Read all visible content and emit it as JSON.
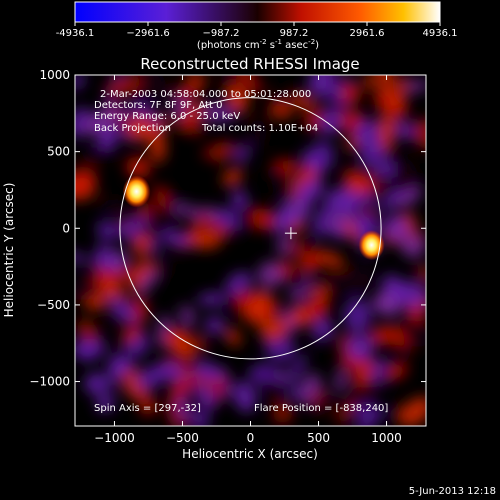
{
  "chart_data": {
    "type": "heatmap",
    "title": "Reconstructed RHESSI Image",
    "xlabel": "Heliocentric X (arcsec)",
    "ylabel": "Heliocentric Y (arcsec)",
    "xlim": [
      -1290,
      1290
    ],
    "ylim": [
      -1290,
      1000
    ],
    "x_ticks": [
      -1000,
      -500,
      0,
      500,
      1000
    ],
    "y_ticks": [
      1000,
      500,
      0,
      -500,
      -1000
    ],
    "colorbar": {
      "range": [
        -4936.1,
        4936.1
      ],
      "tick_values": [
        -4936.1,
        -2961.6,
        -987.2,
        987.2,
        2961.6,
        4936.1
      ],
      "tick_labels": [
        "-4936.1",
        "−2961.6",
        "−987.2",
        "987.2",
        "2961.6",
        "4936.1"
      ],
      "unit_parts": [
        "(photons cm",
        "-2",
        " s",
        "-1",
        " asec",
        "-2",
        ")"
      ],
      "colormap": "blue-purple-red-orange-yellow-white"
    },
    "annotations": {
      "time_range": "2-Mar-2003 04:58:04.000 to 05:01:28.000",
      "detectors": "Detectors: 7F 8F 9F, Att 0",
      "energy": "Energy Range: 6.0 - 25.0 keV",
      "method": "Back Projection",
      "counts": "Total counts: 1.10E+04",
      "spin_axis": "Spin Axis = [297,-32]",
      "flare_position": "Flare Position = [-838,240]"
    },
    "solar_limb": {
      "center": [
        0,
        0
      ],
      "radius": 960
    },
    "spin_axis_marker": [
      297,
      -32
    ],
    "bright_sources": [
      {
        "x": -838,
        "y": 240,
        "peak": 4936.1
      },
      {
        "x": 890,
        "y": -110,
        "peak": 4500
      }
    ],
    "grid": false
  },
  "footer": {
    "timestamp": "5-Jun-2013 12:18"
  }
}
